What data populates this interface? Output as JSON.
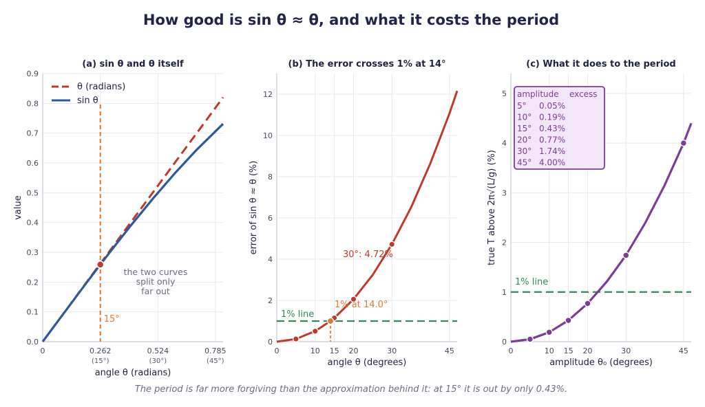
{
  "figure": {
    "title": "How good is sin θ ≈ θ, and what it costs the period",
    "caption": "The period is far more forgiving than the approximation behind it: at 15° it is out by only 0.43%."
  },
  "colors": {
    "theta_line": "#c0392b",
    "sin_line": "#2e5a9c",
    "marker_orange": "#e07b2e",
    "error_curve": "#c0392b",
    "one_percent_line": "#2e8b57",
    "period_curve": "#7d3c98",
    "annotation_text": "#6a6f80"
  },
  "chart_data": [
    {
      "type": "line",
      "title": "(a)  sin θ and θ itself",
      "xlabel": "angle θ (radians)",
      "ylabel": "value",
      "xlim": [
        0,
        0.82
      ],
      "ylim": [
        0,
        0.9
      ],
      "xticks": [
        {
          "value": 0,
          "label": "0",
          "sub": ""
        },
        {
          "value": 0.262,
          "label": "0.262",
          "sub": "(15°)"
        },
        {
          "value": 0.524,
          "label": "0.524",
          "sub": "(30°)"
        },
        {
          "value": 0.785,
          "label": "0.785",
          "sub": "(45°)"
        }
      ],
      "yticks": [
        0,
        0.1,
        0.2,
        0.3,
        0.4,
        0.5,
        0.6,
        0.7,
        0.8,
        0.9
      ],
      "ytick_labels": [
        "0.0",
        "0.1",
        "0.2",
        "0.3",
        "0.4",
        "0.5",
        "0.6",
        "0.7",
        "0.8",
        "0.9"
      ],
      "series": [
        {
          "name": "θ  (radians)",
          "style": "dashed",
          "x": [
            0,
            0.1,
            0.2,
            0.262,
            0.3,
            0.4,
            0.5,
            0.6,
            0.7,
            0.82
          ],
          "y": [
            0,
            0.1,
            0.2,
            0.262,
            0.3,
            0.4,
            0.5,
            0.6,
            0.7,
            0.82
          ]
        },
        {
          "name": "sin θ",
          "style": "solid",
          "x": [
            0,
            0.1,
            0.2,
            0.262,
            0.3,
            0.4,
            0.5,
            0.6,
            0.7,
            0.82
          ],
          "y": [
            0,
            0.0998,
            0.1987,
            0.2588,
            0.2955,
            0.3894,
            0.4794,
            0.5646,
            0.6442,
            0.7311
          ]
        }
      ],
      "vline": {
        "x": 0.262,
        "label": "15°"
      },
      "marker": {
        "x": 0.262,
        "y": 0.2588
      },
      "annotation": [
        "the two curves",
        "split only",
        "far out"
      ],
      "legend": "top-left"
    },
    {
      "type": "line",
      "title": "(b)  The error crosses 1% at 14°",
      "xlabel": "angle θ (degrees)",
      "ylabel": "error of sin θ ≈ θ (%)",
      "xlim": [
        0,
        47
      ],
      "ylim": [
        0,
        13
      ],
      "xticks": [
        0,
        10,
        15,
        20,
        30,
        45
      ],
      "yticks": [
        0,
        2,
        4,
        6,
        8,
        10,
        12
      ],
      "series": [
        {
          "name": "",
          "x": [
            0,
            5,
            10,
            14,
            15,
            20,
            25,
            30,
            35,
            40,
            45,
            47
          ],
          "y": [
            0,
            0.13,
            0.51,
            1.0,
            1.15,
            2.06,
            3.24,
            4.72,
            6.51,
            8.64,
            11.07,
            12.16
          ]
        }
      ],
      "points": [
        {
          "x": 5,
          "y": 0.13
        },
        {
          "x": 10,
          "y": 0.51
        },
        {
          "x": 15,
          "y": 1.15
        },
        {
          "x": 20,
          "y": 2.06
        },
        {
          "x": 30,
          "y": 4.72
        }
      ],
      "crossing": {
        "x": 14.0,
        "y": 1.0,
        "label": "1% at 14.0°"
      },
      "hline": {
        "y": 1,
        "label": "1% line"
      },
      "callout": {
        "x": 30,
        "y": 4.72,
        "label": "30°: 4.72%"
      }
    },
    {
      "type": "line",
      "title": "(c)  What it does to the period",
      "xlabel": "amplitude θ₀ (degrees)",
      "ylabel": "true T above 2π√(L/g)  (%)",
      "xlim": [
        0,
        47
      ],
      "ylim": [
        0,
        5.4
      ],
      "xticks": [
        0,
        10,
        15,
        20,
        30,
        45
      ],
      "yticks": [
        0,
        1,
        2,
        3,
        4,
        5
      ],
      "series": [
        {
          "name": "",
          "x": [
            0,
            5,
            10,
            15,
            20,
            25,
            30,
            35,
            40,
            45,
            47
          ],
          "y": [
            0,
            0.05,
            0.19,
            0.43,
            0.77,
            1.21,
            1.74,
            2.39,
            3.14,
            4.0,
            4.4
          ]
        }
      ],
      "points": [
        {
          "x": 5,
          "y": 0.05
        },
        {
          "x": 10,
          "y": 0.19
        },
        {
          "x": 15,
          "y": 0.43
        },
        {
          "x": 20,
          "y": 0.77
        },
        {
          "x": 30,
          "y": 1.74
        },
        {
          "x": 45,
          "y": 4.0
        }
      ],
      "hline": {
        "y": 1,
        "label": "1% line"
      },
      "table": {
        "header": [
          "amplitude",
          "excess"
        ],
        "rows": [
          [
            "5°",
            "0.05%"
          ],
          [
            "10°",
            "0.19%"
          ],
          [
            "15°",
            "0.43%"
          ],
          [
            "20°",
            "0.77%"
          ],
          [
            "30°",
            "1.74%"
          ],
          [
            "45°",
            "4.00%"
          ]
        ]
      }
    }
  ]
}
